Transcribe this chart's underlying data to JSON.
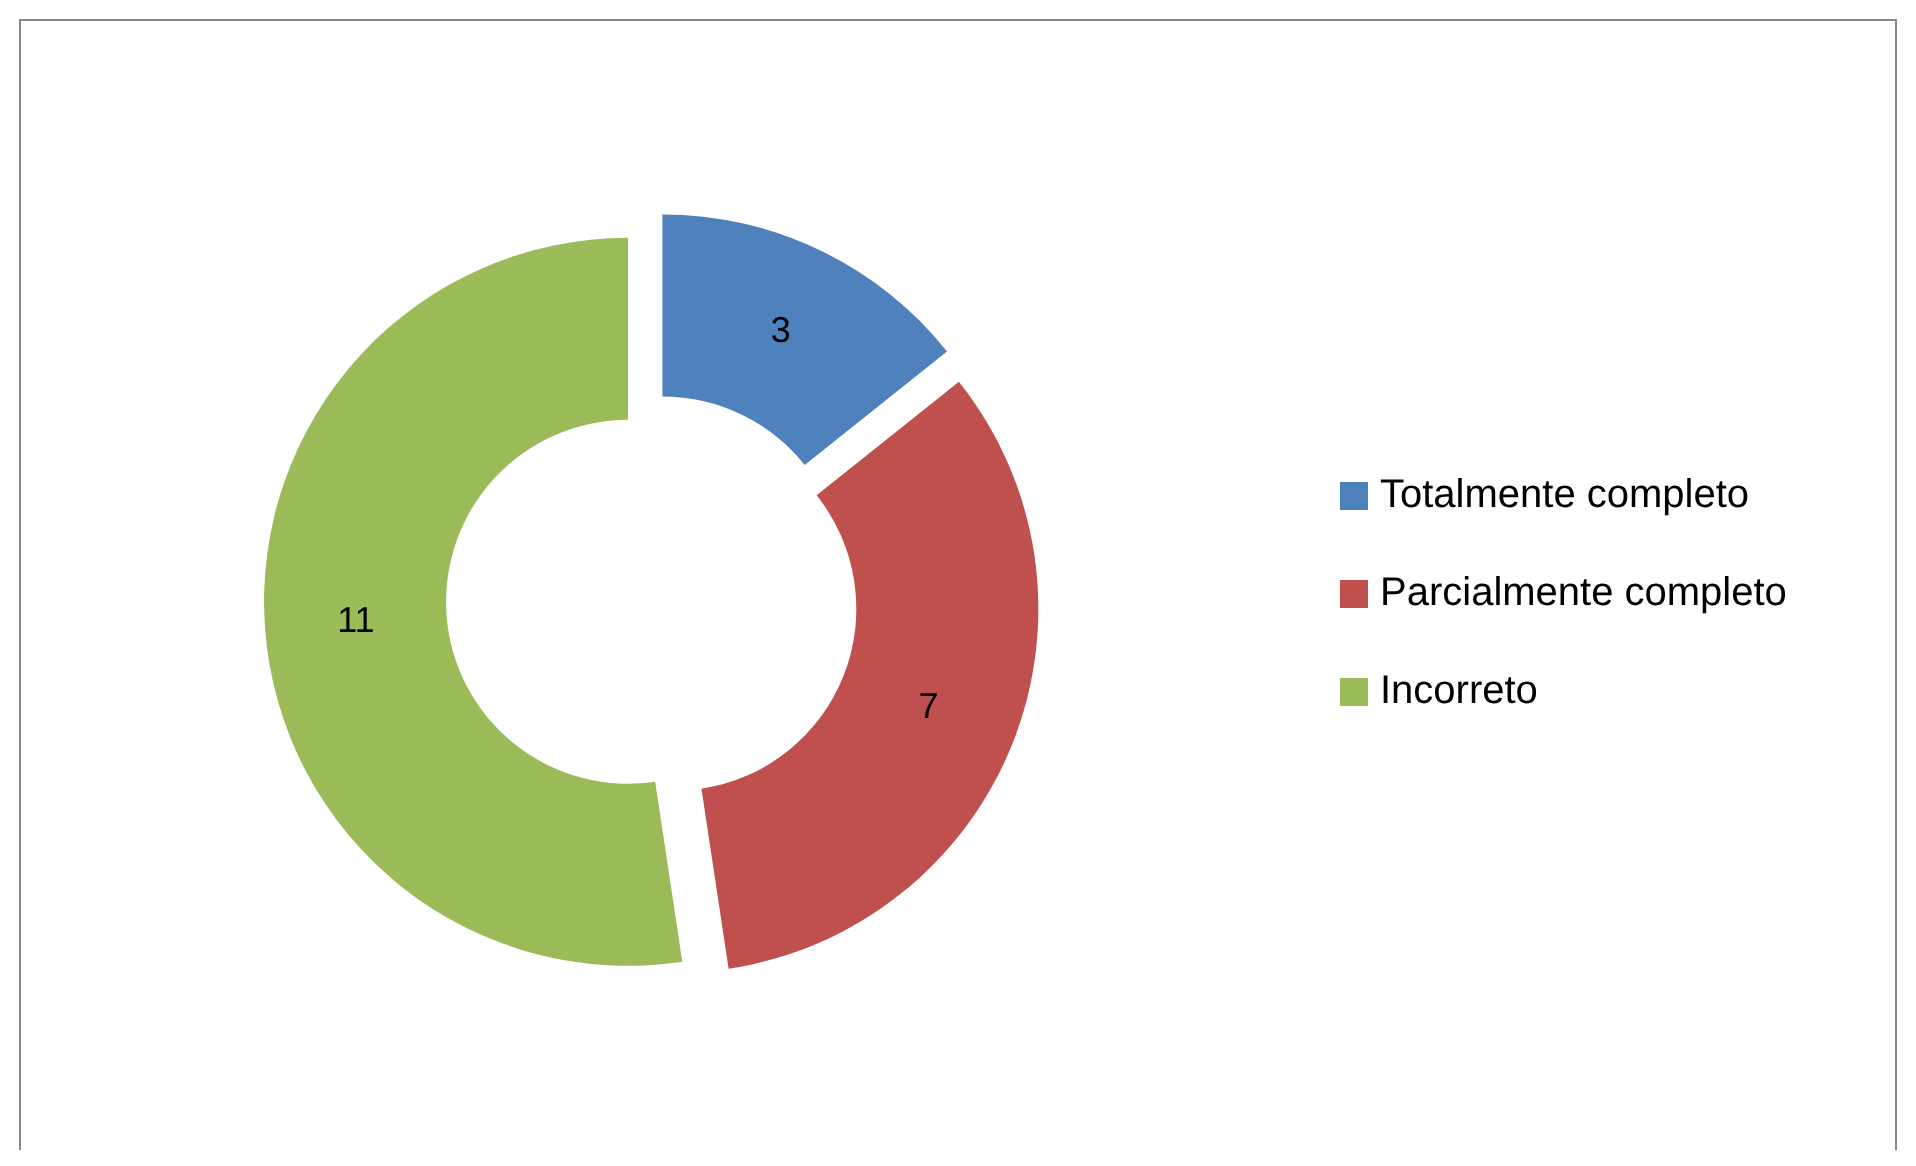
{
  "chart_data": {
    "type": "donut",
    "categories": [
      "Totalmente completo",
      "Parcialmente completo",
      "Incorreto"
    ],
    "values": [
      3,
      7,
      11
    ],
    "colors": [
      "#4f81bd",
      "#c0504d",
      "#9bbb59"
    ],
    "data_labels": true,
    "legend": "right"
  }
}
